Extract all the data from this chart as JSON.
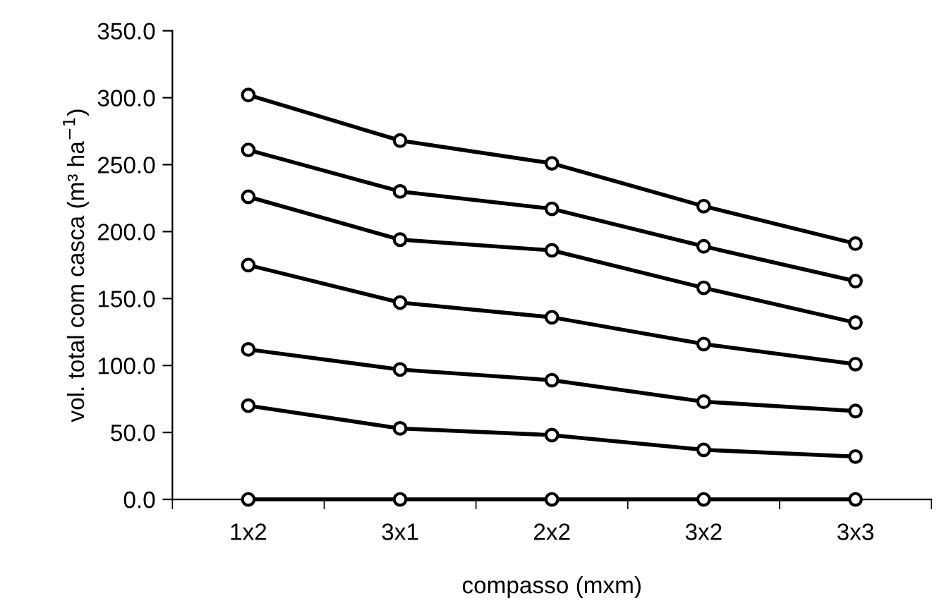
{
  "chart_data": {
    "type": "line",
    "xlabel": "compasso (mxm)",
    "ylabel": "vol. total com casca (m³ ha$^{−1}$)",
    "categories": [
      "1x2",
      "3x1",
      "2x2",
      "3x2",
      "3x3"
    ],
    "series": [
      {
        "color": "#000000",
        "values": [
          302,
          268,
          251,
          219,
          191
        ]
      },
      {
        "color": "#000000",
        "values": [
          261,
          230,
          217,
          189,
          163
        ]
      },
      {
        "color": "#000000",
        "values": [
          226,
          194,
          186,
          158,
          132
        ]
      },
      {
        "color": "#000000",
        "values": [
          175,
          147,
          136,
          116,
          101
        ]
      },
      {
        "color": "#000000",
        "values": [
          112,
          97,
          89,
          73,
          66
        ]
      },
      {
        "color": "#000000",
        "values": [
          70,
          53,
          48,
          37,
          32
        ]
      },
      {
        "color": "#000000",
        "values": [
          0,
          0,
          0,
          0,
          0
        ]
      }
    ],
    "ylim": [
      0,
      350
    ],
    "yticks": [
      {
        "value": 0,
        "label": "0.0"
      },
      {
        "value": 50,
        "label": "50.0"
      },
      {
        "value": 100,
        "label": "100.0"
      },
      {
        "value": 150,
        "label": "150.0"
      },
      {
        "value": 200,
        "label": "200.0"
      },
      {
        "value": 250,
        "label": "250.0"
      },
      {
        "value": 300,
        "label": "300.0"
      },
      {
        "value": 350,
        "label": "350.0"
      }
    ],
    "marker": "circle",
    "line_style": "solid"
  }
}
